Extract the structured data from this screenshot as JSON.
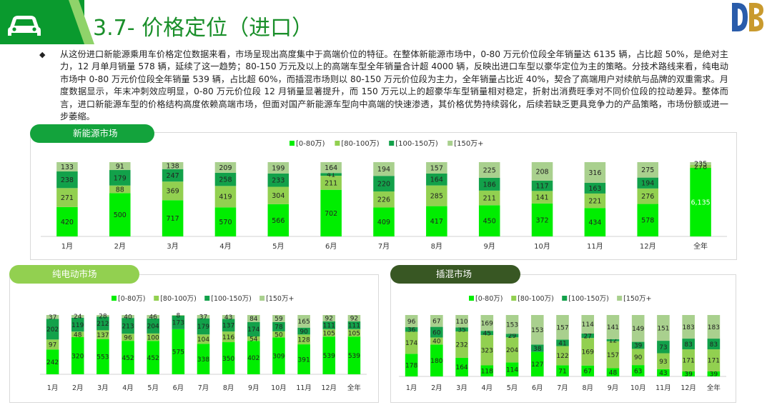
{
  "header": {
    "title": "3.7- 价格定位（进口）"
  },
  "summary": "从这份进口新能源乘用车价格定位数据来看，市场呈现出高度集中于高端价位的特征。在整体新能源市场中，0-80 万元价位段全年销量达 6135 辆，占比超 50%，是绝对主力，12 月单月销量 578 辆，延续了这一趋势；80-150 万元及以上的高端车型全年销量合计超 4000 辆，反映出进口车型以豪华定位为主的策略。分技术路线来看，纯电动市场中 0-80 万元价位段全年销量 539 辆，占比超 60%，而插混市场则以 80-150 万元价位段为主力，全年销量占比近 40%，契合了高端用户对续航与品牌的双重需求。月度数据显示，年末冲刺效应明显，0-80 万元价位段 12 月销量显著提升，而 150 万元以上的超豪华车型销量相对稳定，折射出消费旺季对不同价位段的拉动差异。整体而言，进口新能源车型的价格结构高度依赖高端市场，但面对国产新能源车型向中高端的快速渗透，其价格优势持续弱化，后续若缺乏更具竞争力的产品策略，市场份额或进一步萎缩。",
  "colors": {
    "s1": "#00ee00",
    "s2": "#92d050",
    "s3": "#12a14a",
    "s4": "#a9d08e",
    "brand": "#0a9a2e",
    "pill1": "#13a33c",
    "pill2": "#92d050",
    "pill3": "#385723"
  },
  "chart_data": [
    {
      "type": "bar",
      "stacked": true,
      "title": "新能源市场",
      "categories": [
        "1月",
        "2月",
        "3月",
        "4月",
        "5月",
        "6月",
        "7月",
        "8月",
        "9月",
        "10月",
        "11月",
        "12月",
        "全年"
      ],
      "series": [
        {
          "name": "[0-80万)",
          "values": [
            420,
            500,
            717,
            570,
            566,
            702,
            409,
            417,
            450,
            372,
            434,
            578,
            6135
          ]
        },
        {
          "name": "[80-100万)",
          "values": [
            271,
            88,
            369,
            419,
            304,
            211,
            226,
            285,
            211,
            141,
            221,
            276,
            278
          ]
        },
        {
          "name": "[100-150万)",
          "values": [
            238,
            179,
            247,
            258,
            233,
            41,
            220,
            164,
            186,
            117,
            163,
            194,
            null
          ]
        },
        {
          "name": "[150万+",
          "values": [
            133,
            91,
            138,
            209,
            199,
            164,
            194,
            157,
            225,
            208,
            316,
            275,
            235
          ]
        }
      ],
      "legend_position": "top"
    },
    {
      "type": "bar",
      "stacked": true,
      "title": "纯电动市场",
      "categories": [
        "1月",
        "2月",
        "3月",
        "4月",
        "5月",
        "6月",
        "7月",
        "8月",
        "9月",
        "10月",
        "11月",
        "12月",
        "全年"
      ],
      "series": [
        {
          "name": "[0-80万)",
          "values": [
            242,
            320,
            553,
            452,
            452,
            575,
            338,
            350,
            402,
            309,
            391,
            539,
            539
          ]
        },
        {
          "name": "[80-100万)",
          "values": [
            97,
            48,
            137,
            96,
            100,
            null,
            104,
            116,
            54,
            50,
            128,
            105,
            105
          ]
        },
        {
          "name": "[100-150万)",
          "values": [
            202,
            119,
            212,
            213,
            204,
            173,
            179,
            137,
            174,
            78,
            90,
            111,
            111
          ]
        },
        {
          "name": "[150万+",
          "values": [
            37,
            24,
            28,
            40,
            46,
            8,
            37,
            43,
            84,
            59,
            165,
            92,
            92
          ]
        }
      ],
      "legend_position": "top"
    },
    {
      "type": "bar",
      "stacked": true,
      "title": "插混市场",
      "categories": [
        "1月",
        "2月",
        "3月",
        "4月",
        "5月",
        "6月",
        "7月",
        "8月",
        "9月",
        "10月",
        "11月",
        "12月",
        "全年"
      ],
      "series": [
        {
          "name": "[0-80万)",
          "values": [
            178,
            180,
            164,
            118,
            114,
            127,
            71,
            67,
            48,
            63,
            43,
            39,
            39
          ]
        },
        {
          "name": "[80-100万)",
          "values": [
            174,
            40,
            232,
            323,
            204,
            null,
            122,
            169,
            157,
            90,
            93,
            171,
            171
          ]
        },
        {
          "name": "[100-150万)",
          "values": [
            36,
            60,
            35,
            45,
            29,
            38,
            41,
            27,
            12,
            39,
            73,
            83,
            83
          ]
        },
        {
          "name": "[150万+",
          "values": [
            96,
            67,
            110,
            169,
            153,
            153,
            157,
            114,
            141,
            149,
            151,
            183,
            183
          ]
        }
      ],
      "legend_position": "top"
    }
  ]
}
